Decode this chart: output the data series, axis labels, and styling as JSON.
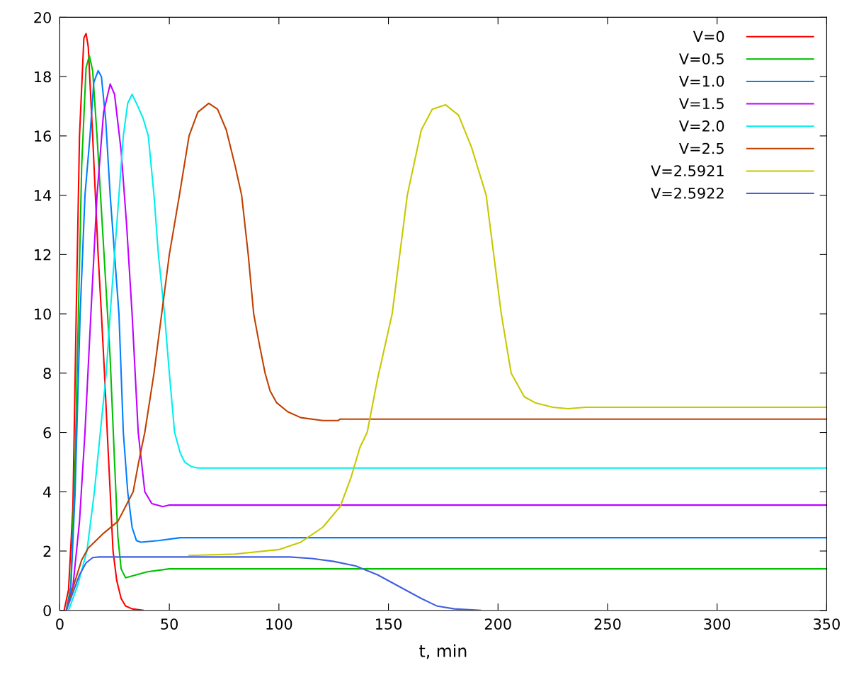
{
  "chart_data": {
    "type": "line",
    "xlabel": "t, min",
    "xlim": [
      0,
      350
    ],
    "ylim": [
      0,
      20
    ],
    "xticks": [
      0,
      50,
      100,
      150,
      200,
      250,
      300,
      350
    ],
    "yticks": [
      0,
      2,
      4,
      6,
      8,
      10,
      12,
      14,
      16,
      18,
      20
    ],
    "grid": false,
    "legend": "top right",
    "marker": "none",
    "line_style": "solid",
    "series": [
      {
        "name": "V=0",
        "color": "#ff0000",
        "x": [
          2,
          4,
          6,
          7.5,
          9,
          11,
          12,
          13,
          15,
          17.5,
          19,
          20.4,
          22,
          23,
          24.3,
          26,
          28,
          30,
          33,
          38
        ],
        "values": [
          0,
          0.7,
          3.5,
          10,
          16,
          19.3,
          19.45,
          19,
          16,
          12,
          10,
          8,
          5.5,
          4,
          2,
          1,
          0.4,
          0.15,
          0.05,
          0
        ]
      },
      {
        "name": "V=0.5",
        "color": "#00c000",
        "x": [
          3,
          5,
          7,
          8.5,
          10,
          12,
          13.5,
          15,
          17,
          19,
          21,
          23,
          25,
          26.5,
          28,
          30,
          35,
          40,
          50,
          350
        ],
        "values": [
          0,
          0.8,
          5,
          10,
          15,
          18.3,
          18.7,
          18.2,
          16,
          13.5,
          11,
          8.5,
          5,
          2.5,
          1.4,
          1.1,
          1.2,
          1.3,
          1.4,
          1.4
        ]
      },
      {
        "name": "V=1.0",
        "color": "#0080ff",
        "x": [
          3,
          5,
          7,
          9.3,
          11.5,
          13.8,
          15.5,
          17.5,
          19,
          21,
          23,
          25,
          27,
          29,
          31,
          33,
          35,
          37,
          45,
          55,
          350
        ],
        "values": [
          0,
          0.7,
          4,
          10,
          14,
          16,
          17.8,
          18.2,
          18,
          16.5,
          14,
          12,
          10,
          6,
          4,
          2.8,
          2.35,
          2.3,
          2.35,
          2.45,
          2.45
        ]
      },
      {
        "name": "V=1.5",
        "color": "#c000ff",
        "x": [
          3,
          6,
          9,
          11.5,
          14.2,
          17,
          20,
          23,
          25,
          28,
          30.5,
          33,
          35.8,
          38.8,
          42,
          47,
          50,
          350
        ],
        "values": [
          0,
          0.8,
          3,
          6,
          10,
          14,
          16.8,
          17.75,
          17.4,
          15.5,
          13,
          10,
          6,
          4,
          3.6,
          3.5,
          3.55,
          3.55
        ]
      },
      {
        "name": "V=2.0",
        "color": "#00eeee",
        "x": [
          4,
          8,
          12.4,
          15.8,
          18.5,
          21.2,
          23,
          26,
          29,
          31,
          33,
          35,
          38,
          40.4,
          43,
          45,
          47.8,
          50,
          52.4,
          55,
          57,
          60,
          63,
          350
        ],
        "values": [
          0,
          0.8,
          2,
          4,
          6,
          8,
          10,
          13,
          16,
          17.1,
          17.4,
          17.1,
          16.6,
          16,
          14,
          12,
          10,
          8,
          6,
          5.3,
          5,
          4.85,
          4.8,
          4.8
        ]
      },
      {
        "name": "V=2.5",
        "color": "#c04000",
        "x": [
          3,
          5,
          7,
          10,
          13,
          20,
          26.5,
          30,
          33.5,
          36,
          38.8,
          43,
          46.5,
          50,
          54.6,
          59,
          63,
          68,
          72,
          76,
          80,
          83,
          86,
          88.5,
          91,
          93.7,
          96,
          99,
          104,
          110,
          120,
          127,
          128,
          350
        ],
        "values": [
          0,
          0.5,
          1,
          1.7,
          2.1,
          2.6,
          3,
          3.5,
          4,
          5,
          6,
          8,
          10,
          12,
          14,
          16,
          16.8,
          17.1,
          16.9,
          16.2,
          15,
          14,
          12,
          10,
          9,
          8,
          7.4,
          7,
          6.7,
          6.5,
          6.4,
          6.4,
          6.45,
          6.45
        ]
      },
      {
        "name": "V=2.5921",
        "color": "#c8c800",
        "x": [
          59,
          80,
          100,
          110,
          120,
          128,
          133,
          137,
          140.3,
          145,
          151.7,
          158.6,
          165,
          170,
          176,
          182,
          188,
          194.6,
          201.5,
          206,
          212,
          217,
          225,
          232,
          240,
          350
        ],
        "values": [
          1.85,
          1.9,
          2.05,
          2.3,
          2.8,
          3.5,
          4.5,
          5.5,
          6,
          7.8,
          10,
          14,
          16.2,
          16.9,
          17.05,
          16.7,
          15.6,
          14,
          10,
          8,
          7.2,
          7,
          6.85,
          6.8,
          6.85,
          6.85
        ]
      },
      {
        "name": "V=2.5922",
        "color": "#4060e0",
        "x": [
          3,
          6,
          9,
          12,
          15,
          18,
          105,
          115,
          125,
          135,
          145,
          155,
          165,
          172,
          180,
          192
        ],
        "values": [
          0,
          0.6,
          1.2,
          1.6,
          1.78,
          1.8,
          1.8,
          1.75,
          1.65,
          1.5,
          1.2,
          0.8,
          0.4,
          0.15,
          0.05,
          0
        ]
      }
    ]
  }
}
